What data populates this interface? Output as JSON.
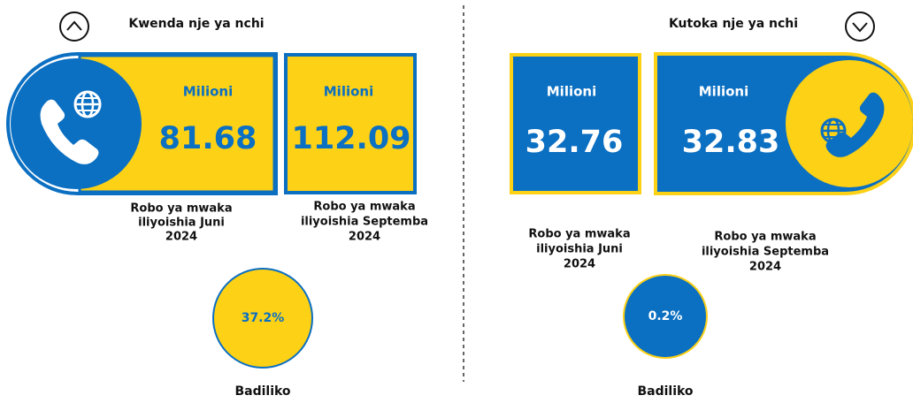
{
  "left": {
    "heading": "Kwenda nje ya nchi",
    "boxes": [
      {
        "unit": "Milioni",
        "value": "81.68",
        "period": [
          "Robo ya mwaka",
          "iliyoishia Juni",
          "2024"
        ]
      },
      {
        "unit": "Milioni",
        "value": "112.09",
        "period": [
          "Robo ya mwaka",
          "iliyoishia Septemba",
          "2024"
        ]
      }
    ],
    "change": {
      "value": "37.2%",
      "label": "Badiliko"
    }
  },
  "right": {
    "heading": "Kutoka nje ya nchi",
    "boxes": [
      {
        "unit": "Milioni",
        "value": "32.76",
        "period": [
          "Robo ya mwaka",
          "iliyoishia Juni",
          "2024"
        ]
      },
      {
        "unit": "Milioni",
        "value": "32.83",
        "period": [
          "Robo ya mwaka",
          "iliyoishia Septemba",
          "2024"
        ]
      }
    ],
    "change": {
      "value": "0.2%",
      "label": "Badiliko"
    }
  }
}
